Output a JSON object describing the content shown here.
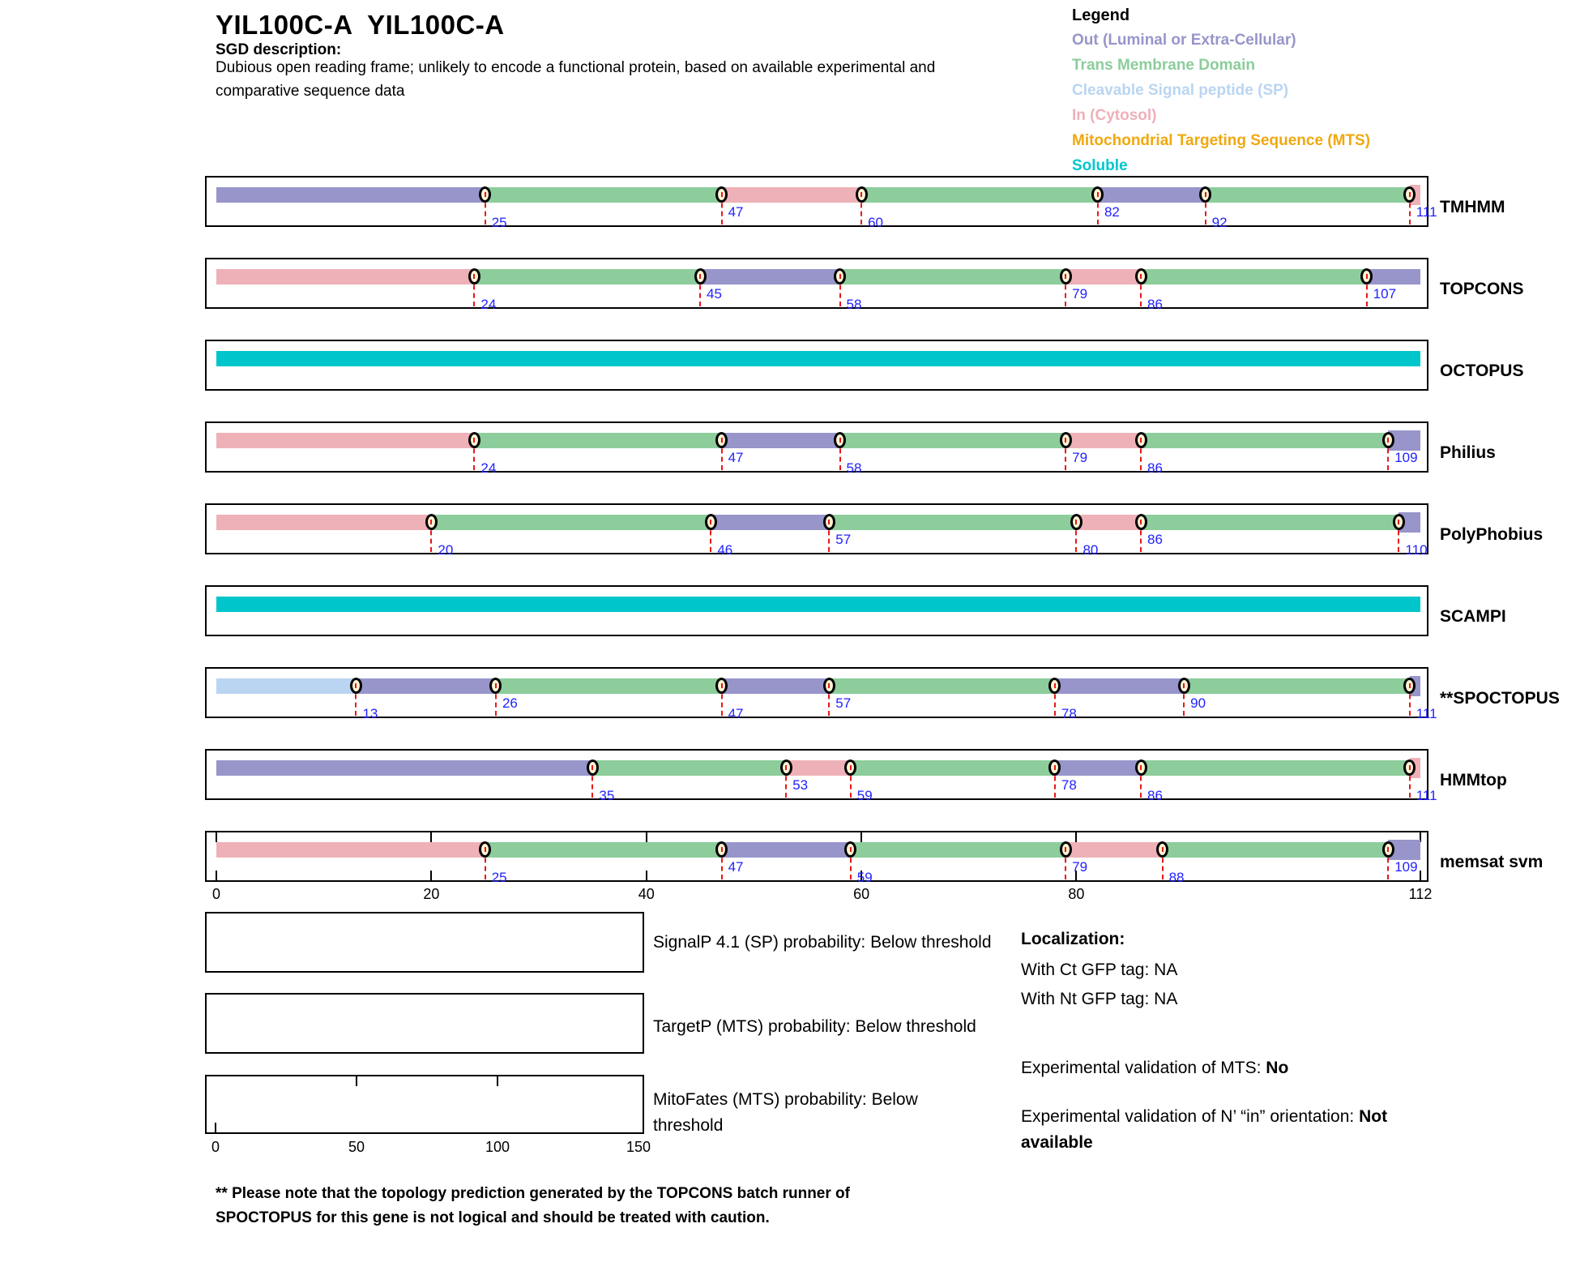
{
  "header": {
    "title": "YIL100C-A  YIL100C-A",
    "sgd_label": "SGD description:",
    "description_line1": "Dubious open reading frame; unlikely to encode a functional protein, based on available experimental and",
    "description_line2": "comparative sequence data"
  },
  "legend": {
    "title": "Legend",
    "items": [
      {
        "label": "Out (Luminal or Extra-Cellular)",
        "color": "#9795ca",
        "region": "out"
      },
      {
        "label": "Trans Membrane Domain",
        "color": "#8ccd9b",
        "region": "tm"
      },
      {
        "label": "Cleavable Signal peptide (SP)",
        "color": "#bad5f1",
        "region": "sp"
      },
      {
        "label": "In (Cytosol)",
        "color": "#eeb1b7",
        "region": "in"
      },
      {
        "label": "Mitochondrial Targeting Sequence (MTS)",
        "color": "#f0a80f",
        "region": "mts"
      },
      {
        "label": "Soluble",
        "color": "#00c6cc",
        "region": "soluble"
      }
    ]
  },
  "colors": {
    "out": "#9795ca",
    "tm": "#8ccd9b",
    "sp": "#bad5f1",
    "in": "#eeb1b7",
    "mts": "#f0a80f",
    "soluble": "#00c6cc",
    "position_number_blue": "#2222ff",
    "dashed_marker_red": "#e81717",
    "marker_fill_cream": "#fdf3d4"
  },
  "chart_data": {
    "type": "bar",
    "subtype": "protein-topology-prediction-tracks",
    "x_range": [
      0,
      112
    ],
    "x_ticks": [
      0,
      20,
      40,
      60,
      80,
      112
    ],
    "grid": false,
    "legend_position": "top-right",
    "tracks": [
      {
        "label": "TMHMM",
        "segments": [
          {
            "region": "out",
            "start": 0,
            "end": 25
          },
          {
            "region": "tm",
            "start": 25,
            "end": 47
          },
          {
            "region": "in",
            "start": 47,
            "end": 60
          },
          {
            "region": "tm",
            "start": 60,
            "end": 82
          },
          {
            "region": "out",
            "start": 82,
            "end": 92
          },
          {
            "region": "tm",
            "start": 92,
            "end": 111
          },
          {
            "region": "in",
            "start": 111,
            "end": 112
          }
        ],
        "markers": [
          {
            "pos": 25,
            "level": "low"
          },
          {
            "pos": 47,
            "level": "up"
          },
          {
            "pos": 60,
            "level": "low"
          },
          {
            "pos": 82,
            "level": "up"
          },
          {
            "pos": 92,
            "level": "low"
          },
          {
            "pos": 111,
            "level": "up"
          }
        ]
      },
      {
        "label": "TOPCONS",
        "segments": [
          {
            "region": "in",
            "start": 0,
            "end": 24
          },
          {
            "region": "tm",
            "start": 24,
            "end": 45
          },
          {
            "region": "out",
            "start": 45,
            "end": 58
          },
          {
            "region": "tm",
            "start": 58,
            "end": 79
          },
          {
            "region": "in",
            "start": 79,
            "end": 86
          },
          {
            "region": "tm",
            "start": 86,
            "end": 107
          },
          {
            "region": "out",
            "start": 107,
            "end": 112
          }
        ],
        "markers": [
          {
            "pos": 24,
            "level": "low"
          },
          {
            "pos": 45,
            "level": "up"
          },
          {
            "pos": 58,
            "level": "low"
          },
          {
            "pos": 79,
            "level": "up"
          },
          {
            "pos": 86,
            "level": "low"
          },
          {
            "pos": 107,
            "level": "up"
          }
        ]
      },
      {
        "label": "OCTOPUS",
        "segments": [
          {
            "region": "soluble",
            "start": 0,
            "end": 112
          }
        ],
        "markers": []
      },
      {
        "label": "Philius",
        "segments": [
          {
            "region": "in",
            "start": 0,
            "end": 24
          },
          {
            "region": "tm",
            "start": 24,
            "end": 47
          },
          {
            "region": "out",
            "start": 47,
            "end": 58
          },
          {
            "region": "tm",
            "start": 58,
            "end": 79
          },
          {
            "region": "in",
            "start": 79,
            "end": 86
          },
          {
            "region": "tm",
            "start": 86,
            "end": 109
          },
          {
            "region": "out",
            "start": 109,
            "end": 112
          }
        ],
        "markers": [
          {
            "pos": 24,
            "level": "low"
          },
          {
            "pos": 47,
            "level": "up"
          },
          {
            "pos": 58,
            "level": "low"
          },
          {
            "pos": 79,
            "level": "up"
          },
          {
            "pos": 86,
            "level": "low"
          },
          {
            "pos": 109,
            "level": "up"
          }
        ]
      },
      {
        "label": "PolyPhobius",
        "segments": [
          {
            "region": "in",
            "start": 0,
            "end": 20
          },
          {
            "region": "tm",
            "start": 20,
            "end": 46
          },
          {
            "region": "out",
            "start": 46,
            "end": 57
          },
          {
            "region": "tm",
            "start": 57,
            "end": 80
          },
          {
            "region": "in",
            "start": 80,
            "end": 86
          },
          {
            "region": "tm",
            "start": 86,
            "end": 110
          },
          {
            "region": "out",
            "start": 110,
            "end": 112
          }
        ],
        "markers": [
          {
            "pos": 20,
            "level": "low"
          },
          {
            "pos": 46,
            "level": "low"
          },
          {
            "pos": 57,
            "level": "up"
          },
          {
            "pos": 80,
            "level": "low"
          },
          {
            "pos": 86,
            "level": "up"
          },
          {
            "pos": 110,
            "level": "low"
          }
        ]
      },
      {
        "label": "SCAMPI",
        "segments": [
          {
            "region": "soluble",
            "start": 0,
            "end": 112
          }
        ],
        "markers": []
      },
      {
        "label": "**SPOCTOPUS",
        "segments": [
          {
            "region": "sp",
            "start": 0,
            "end": 13
          },
          {
            "region": "out",
            "start": 13,
            "end": 26
          },
          {
            "region": "tm",
            "start": 26,
            "end": 47
          },
          {
            "region": "out",
            "start": 47,
            "end": 57
          },
          {
            "region": "tm",
            "start": 57,
            "end": 78
          },
          {
            "region": "out",
            "start": 78,
            "end": 90
          },
          {
            "region": "tm",
            "start": 90,
            "end": 111
          },
          {
            "region": "out",
            "start": 111,
            "end": 112
          }
        ],
        "markers": [
          {
            "pos": 13,
            "level": "low"
          },
          {
            "pos": 26,
            "level": "up"
          },
          {
            "pos": 47,
            "level": "low"
          },
          {
            "pos": 57,
            "level": "up"
          },
          {
            "pos": 78,
            "level": "low"
          },
          {
            "pos": 90,
            "level": "up"
          },
          {
            "pos": 111,
            "level": "low"
          }
        ]
      },
      {
        "label": "HMMtop",
        "segments": [
          {
            "region": "out",
            "start": 0,
            "end": 35
          },
          {
            "region": "tm",
            "start": 35,
            "end": 53
          },
          {
            "region": "in",
            "start": 53,
            "end": 59
          },
          {
            "region": "tm",
            "start": 59,
            "end": 78
          },
          {
            "region": "out",
            "start": 78,
            "end": 86
          },
          {
            "region": "tm",
            "start": 86,
            "end": 111
          },
          {
            "region": "in",
            "start": 111,
            "end": 112
          }
        ],
        "markers": [
          {
            "pos": 35,
            "level": "low"
          },
          {
            "pos": 53,
            "level": "up"
          },
          {
            "pos": 59,
            "level": "low"
          },
          {
            "pos": 78,
            "level": "up"
          },
          {
            "pos": 86,
            "level": "low"
          },
          {
            "pos": 111,
            "level": "low"
          }
        ]
      },
      {
        "label": "memsat svm",
        "segments": [
          {
            "region": "in",
            "start": 0,
            "end": 25
          },
          {
            "region": "tm",
            "start": 25,
            "end": 47
          },
          {
            "region": "out",
            "start": 47,
            "end": 59
          },
          {
            "region": "tm",
            "start": 59,
            "end": 79
          },
          {
            "region": "in",
            "start": 79,
            "end": 88
          },
          {
            "region": "tm",
            "start": 88,
            "end": 109
          },
          {
            "region": "out",
            "start": 109,
            "end": 112
          }
        ],
        "markers": [
          {
            "pos": 25,
            "level": "low"
          },
          {
            "pos": 47,
            "level": "up"
          },
          {
            "pos": 59,
            "level": "low"
          },
          {
            "pos": 79,
            "level": "up"
          },
          {
            "pos": 88,
            "level": "low"
          },
          {
            "pos": 109,
            "level": "up"
          }
        ],
        "box_ticks": [
          0,
          20,
          40,
          60,
          80,
          112
        ]
      }
    ],
    "probability_plots": [
      {
        "name": "signalp",
        "text_lines": [
          "SignalP 4.1 (SP) probability: Below threshold"
        ],
        "data": []
      },
      {
        "name": "targetp",
        "text_lines": [
          "TargetP (MTS) probability: Below threshold"
        ],
        "data": []
      },
      {
        "name": "mitofates",
        "text_lines": [
          "MitoFates (MTS) probability: Below",
          "threshold"
        ],
        "x_ticks": [
          0,
          50,
          100,
          150
        ],
        "data": []
      }
    ]
  },
  "localization": {
    "title": "Localization:",
    "items": [
      "With Ct GFP tag: NA",
      "With Nt GFP tag: NA"
    ],
    "mts_normal": "Experimental validation of MTS: ",
    "mts_bold": "No",
    "orientation_normal": "Experimental validation of N’ “in” orientation: ",
    "orientation_bold": "Not available"
  },
  "footnote_line1": "** Please note that the topology prediction generated by the TOPCONS batch runner of",
  "footnote_line2": "SPOCTOPUS for this gene is not logical and should be treated with caution."
}
